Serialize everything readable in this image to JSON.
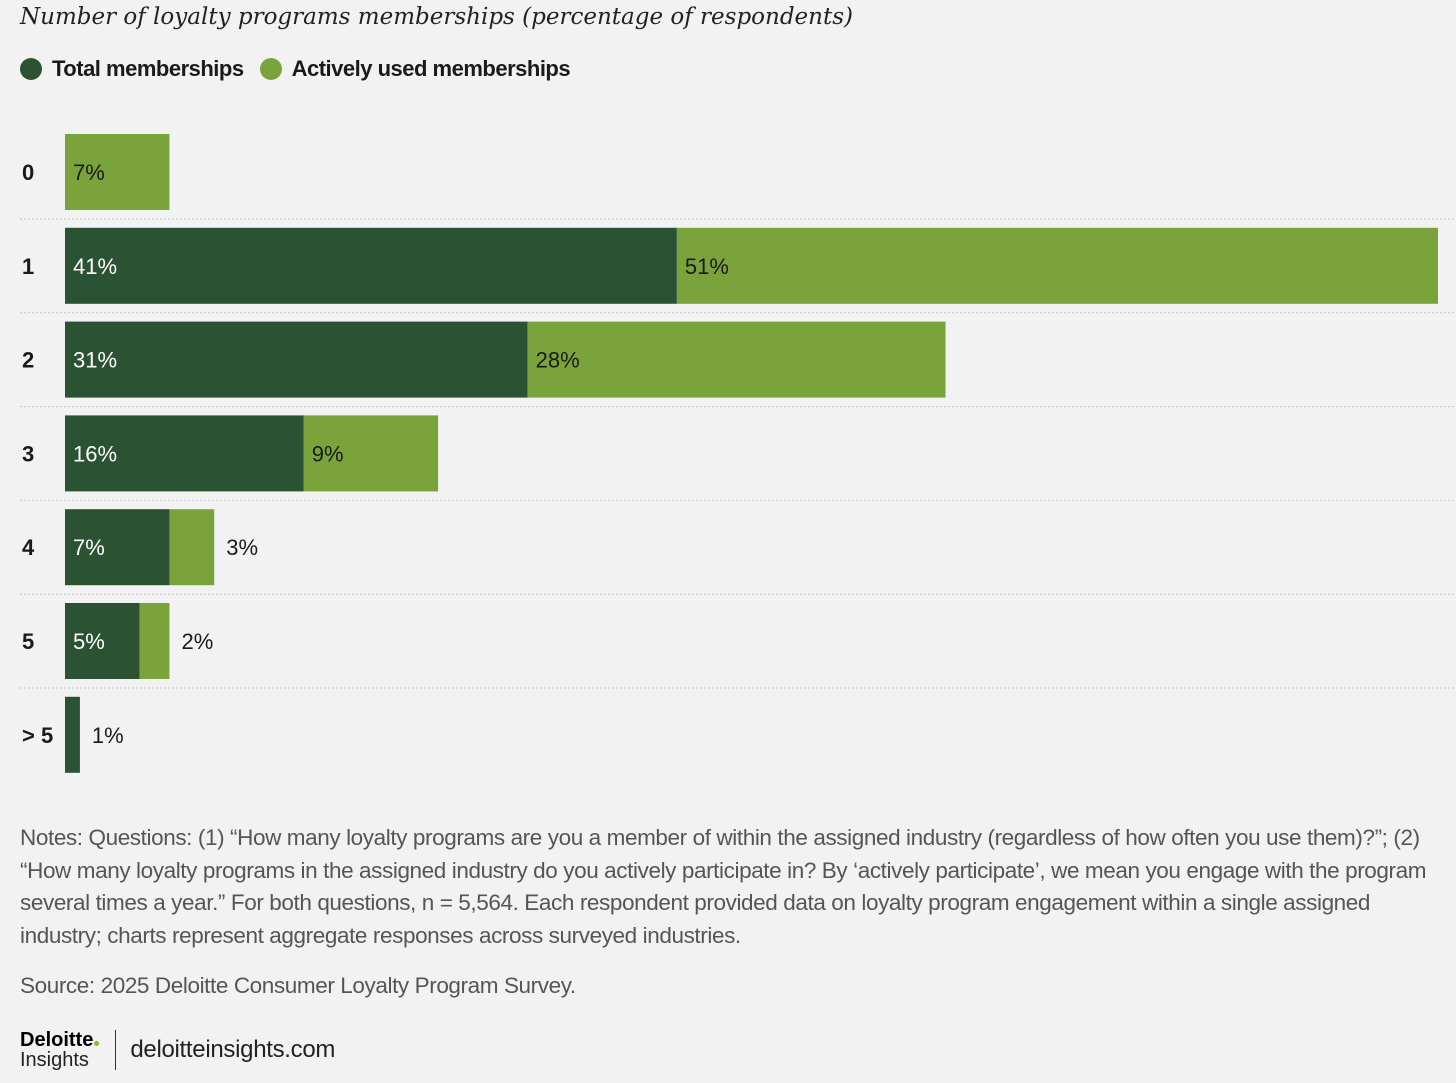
{
  "title": "Number of loyalty programs memberships (percentage of respondents)",
  "colors": {
    "total": "#2c5234",
    "active": "#7aa43b",
    "background": "#f2f2f2"
  },
  "chart_data": {
    "type": "bar",
    "orientation": "horizontal",
    "stacked": true,
    "categories": [
      "0",
      "1",
      "2",
      "3",
      "4",
      "5",
      "> 5"
    ],
    "series": [
      {
        "name": "Total memberships",
        "color": "#2c5234",
        "values": [
          0,
          41,
          31,
          16,
          7,
          5,
          1
        ],
        "labels": [
          "",
          "41%",
          "31%",
          "16%",
          "7%",
          "5%",
          "1%"
        ]
      },
      {
        "name": "Actively used memberships",
        "color": "#7aa43b",
        "values": [
          7,
          51,
          28,
          9,
          3,
          2,
          0
        ],
        "labels": [
          "7%",
          "51%",
          "28%",
          "9%",
          "3%",
          "2%",
          ""
        ]
      }
    ],
    "legend": "top-left",
    "grid": false
  },
  "notes": "Notes: Questions: (1) “How many loyalty programs are you a member of within the assigned industry (regardless of how often you use them)?”; (2) “How many loyalty programs in the assigned industry do you actively participate in? By ‘actively participate’, we mean you engage with the program several times a year.” For both questions, n = 5,564. Each respondent provided data on loyalty program engagement within a single assigned industry; charts represent aggregate responses across surveyed industries.",
  "source": "Source: 2025 Deloitte Consumer Loyalty Program Survey.",
  "footer": {
    "brand": "Deloitte",
    "sub": "Insights",
    "url": "deloitteinsights.com"
  }
}
